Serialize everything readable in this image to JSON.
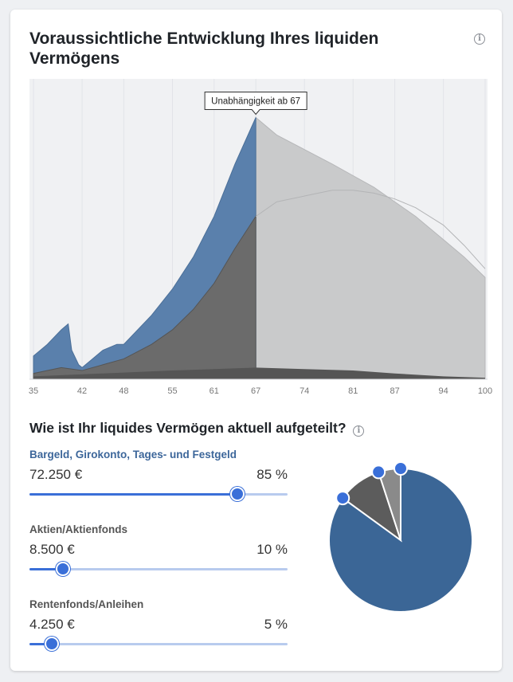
{
  "card": {
    "title": "Voraussichtliche Entwicklung Ihres liquiden Vermögens",
    "info_icon": "info-circle-icon"
  },
  "chart_data": {
    "type": "area",
    "xlabel": "",
    "ylabel": "",
    "x_ticks": [
      35,
      42,
      48,
      55,
      61,
      67,
      74,
      81,
      87,
      94,
      100
    ],
    "xlim": [
      35,
      100
    ],
    "ylim": [
      0,
      100
    ],
    "tooltip": "Unabhängigkeit ab 67",
    "tooltip_x": 67,
    "grid": true,
    "colors": {
      "accumulation": "#5a80ac",
      "core": "#6b6b6b",
      "projection": "#c9cacb",
      "background": "#f0f1f3"
    },
    "series": [
      {
        "x": [
          35,
          37,
          39,
          40,
          40.5,
          41.5,
          42,
          43,
          45,
          47,
          48,
          50,
          52,
          55,
          58,
          61,
          64,
          67
        ],
        "values": [
          8,
          12,
          17,
          19,
          10,
          5,
          4,
          6,
          10,
          12,
          12,
          17,
          22,
          31,
          42,
          56,
          74,
          90
        ]
      },
      {
        "x": [
          35,
          39,
          42,
          45,
          48,
          52,
          55,
          58,
          61,
          64,
          67
        ],
        "values": [
          2,
          4,
          3,
          5,
          7,
          12,
          17,
          24,
          33,
          45,
          56
        ]
      },
      {
        "x": [
          35,
          45,
          55,
          61,
          67,
          74,
          81,
          87,
          94,
          100
        ],
        "values": [
          1,
          2,
          3,
          3.5,
          4,
          3.5,
          3,
          2,
          1,
          0.5
        ]
      },
      {
        "x": [
          67,
          70,
          74,
          78,
          81,
          84,
          87,
          90,
          94,
          97,
          100
        ],
        "values": [
          90,
          84,
          79,
          74,
          70,
          66,
          61,
          56,
          48,
          42,
          35
        ]
      },
      {
        "x": [
          67,
          70,
          74,
          78,
          81,
          84,
          87,
          90,
          94,
          97,
          100
        ],
        "values": [
          56,
          61,
          63,
          65,
          65,
          64,
          62,
          59,
          53,
          46,
          38
        ]
      }
    ]
  },
  "allocation": {
    "title": "Wie ist Ihr liquides Vermögen aktuell aufgeteilt?",
    "items": [
      {
        "label": "Bargeld, Girokonto, Tages- und Festgeld",
        "amount": "72.250 €",
        "percent": "85 %",
        "value": 85,
        "color": "#3b6696"
      },
      {
        "label": "Aktien/Aktienfonds",
        "amount": "8.500 €",
        "percent": "10 %",
        "value": 10,
        "color": "#5c5c5c"
      },
      {
        "label": "Rentenfonds/Anleihen",
        "amount": "4.250 €",
        "percent": "5 %",
        "value": 5,
        "color": "#8a8a8a"
      }
    ]
  }
}
